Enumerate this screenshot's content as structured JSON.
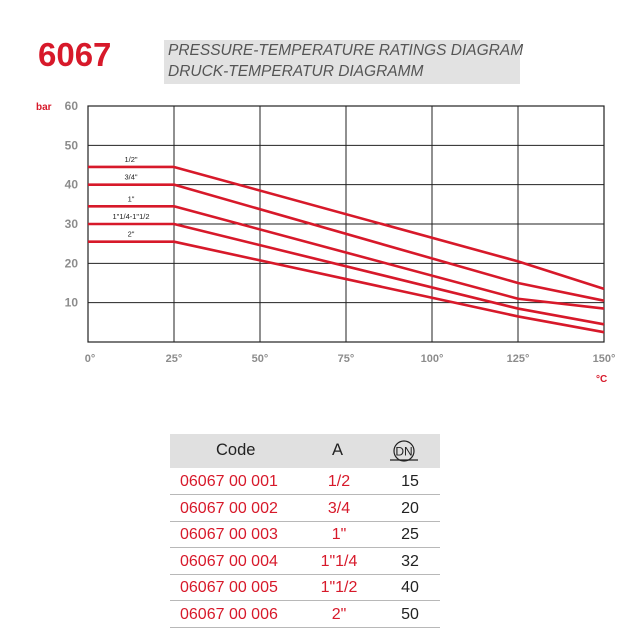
{
  "header": {
    "code": "6067",
    "title_line1": "PRESSURE-TEMPERATURE RATINGS DIAGRAM",
    "title_line2": "DRUCK-TEMPERATUR DIAGRAMM"
  },
  "chart_data": {
    "type": "line",
    "title": "PRESSURE-TEMPERATURE RATINGS DIAGRAM",
    "xlabel": "°C",
    "ylabel": "bar",
    "xlim": [
      0,
      150
    ],
    "ylim": [
      0,
      60
    ],
    "x_ticks": [
      "0°",
      "25°",
      "50°",
      "75°",
      "100°",
      "125°",
      "150°"
    ],
    "y_ticks": [
      "10",
      "20",
      "30",
      "40",
      "50",
      "60"
    ],
    "grid": true,
    "color": "#d7192a",
    "series": [
      {
        "name": "1/2\"",
        "points": [
          [
            0,
            44.5
          ],
          [
            25,
            44.5
          ],
          [
            125,
            20.5
          ],
          [
            150,
            13.5
          ]
        ]
      },
      {
        "name": "3/4\"",
        "points": [
          [
            0,
            40
          ],
          [
            25,
            40
          ],
          [
            125,
            15
          ],
          [
            150,
            10.5
          ]
        ]
      },
      {
        "name": "1\"",
        "points": [
          [
            0,
            34.5
          ],
          [
            25,
            34.5
          ],
          [
            125,
            11
          ],
          [
            150,
            8.5
          ]
        ]
      },
      {
        "name": "1\"1/4-1\"1/2",
        "points": [
          [
            0,
            30
          ],
          [
            25,
            30
          ],
          [
            125,
            8.5
          ],
          [
            150,
            4.5
          ]
        ]
      },
      {
        "name": "2\"",
        "points": [
          [
            0,
            25.5
          ],
          [
            25,
            25.5
          ],
          [
            125,
            6.5
          ],
          [
            150,
            2.5
          ]
        ]
      }
    ]
  },
  "table": {
    "headers": {
      "code": "Code",
      "a": "A",
      "dn": "DN"
    },
    "rows": [
      {
        "code": "06067 00 001",
        "a": "1/2",
        "dn": "15"
      },
      {
        "code": "06067 00 002",
        "a": "3/4",
        "dn": "20"
      },
      {
        "code": "06067 00 003",
        "a": "1\"",
        "dn": "25"
      },
      {
        "code": "06067 00 004",
        "a": "1\"1/4",
        "dn": "32"
      },
      {
        "code": "06067 00 005",
        "a": "1\"1/2",
        "dn": "40"
      },
      {
        "code": "06067 00 006",
        "a": "2\"",
        "dn": "50"
      }
    ]
  }
}
